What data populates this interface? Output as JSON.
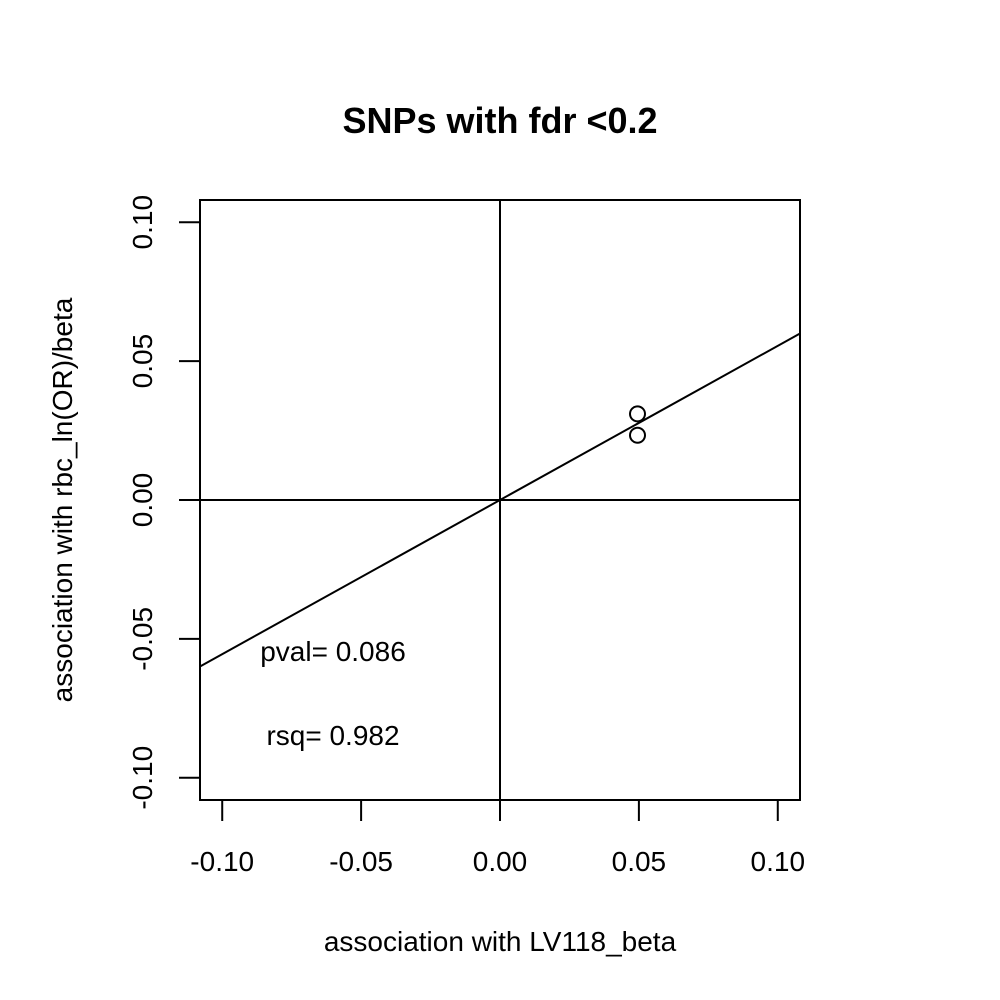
{
  "chart_data": {
    "type": "scatter",
    "title": "SNPs with fdr <0.2",
    "xlabel": "association with LV118_beta",
    "ylabel": "association with rbc_ln(OR)/beta",
    "xlim": [
      -0.108,
      0.108
    ],
    "ylim": [
      -0.108,
      0.108
    ],
    "x_ticks": [
      -0.1,
      -0.05,
      0.0,
      0.05,
      0.1
    ],
    "y_ticks": [
      -0.1,
      -0.05,
      0.0,
      0.05,
      0.1
    ],
    "x_tick_labels": [
      "-0.10",
      "-0.05",
      "0.00",
      "0.05",
      "0.10"
    ],
    "y_tick_labels": [
      "-0.10",
      "-0.05",
      "0.00",
      "0.05",
      "0.10"
    ],
    "points": [
      {
        "x": 0.0495,
        "y": 0.031
      },
      {
        "x": 0.0495,
        "y": 0.0233
      }
    ],
    "reference_lines": {
      "h": 0,
      "v": 0
    },
    "fit_line": {
      "intercept": 0,
      "slope": 0.555
    },
    "annotations": {
      "pval": "pval= 0.086",
      "rsq": "rsq= 0.982"
    },
    "grid": false,
    "legend": "none"
  }
}
